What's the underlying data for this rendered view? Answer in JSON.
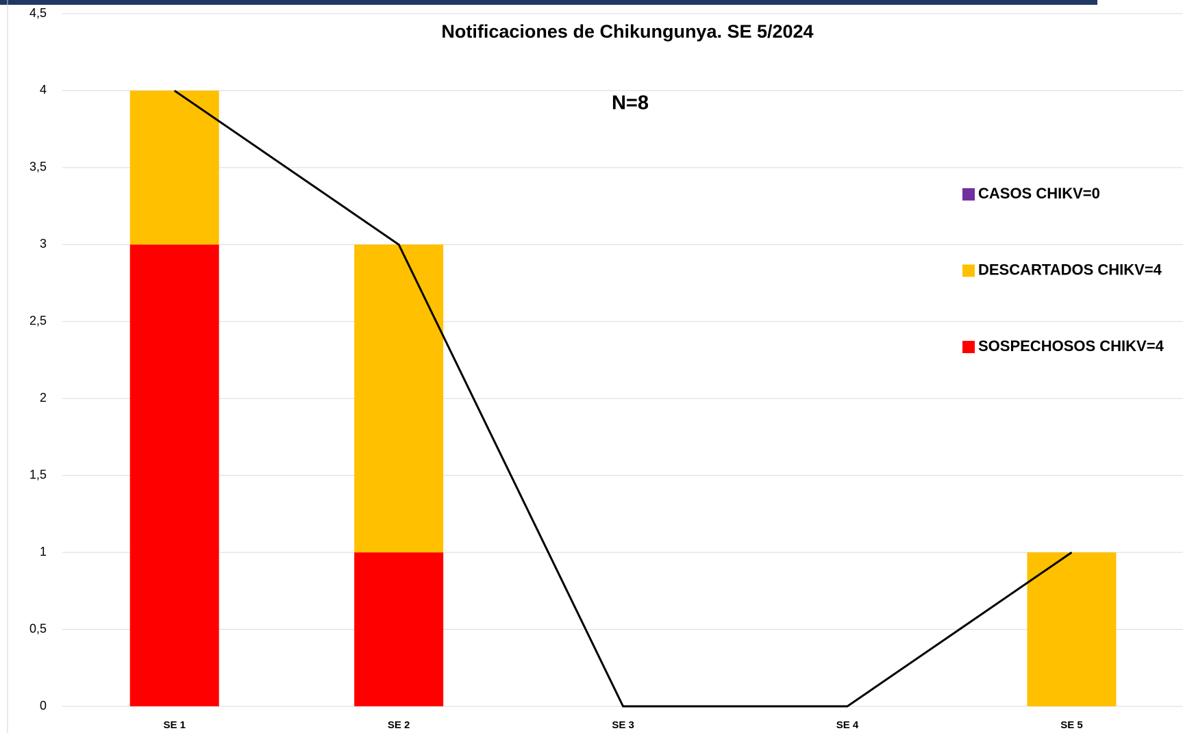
{
  "chart_data": {
    "type": "bar",
    "stacked": true,
    "title": "Notificaciones de Chikungunya. SE 5/2024",
    "annotation": "N=8",
    "categories": [
      "SE 1",
      "SE 2",
      "SE 3",
      "SE 4",
      "SE 5"
    ],
    "series": [
      {
        "name": "SOSPECHOSOS CHIKV=4",
        "color": "#ff0000",
        "values": [
          3,
          1,
          0,
          0,
          0
        ]
      },
      {
        "name": "DESCARTADOS CHIKV=4",
        "color": "#ffc000",
        "values": [
          1,
          2,
          0,
          0,
          1
        ]
      },
      {
        "name": "CASOS CHIKV=0",
        "color": "#7030a0",
        "values": [
          0,
          0,
          0,
          0,
          0
        ]
      }
    ],
    "line": {
      "color": "#000000",
      "values": [
        4,
        3,
        0,
        0,
        1
      ]
    },
    "ylim": [
      0,
      4.5
    ],
    "yticks": [
      0,
      {
        "value": 0.5,
        "label": "0,5"
      },
      1,
      {
        "value": 1.5,
        "label": "1,5"
      },
      2,
      {
        "value": 2.5,
        "label": "2,5"
      },
      3,
      {
        "value": 3.5,
        "label": "3,5"
      },
      4,
      {
        "value": 4.5,
        "label": "4,5"
      }
    ],
    "grid": true
  }
}
